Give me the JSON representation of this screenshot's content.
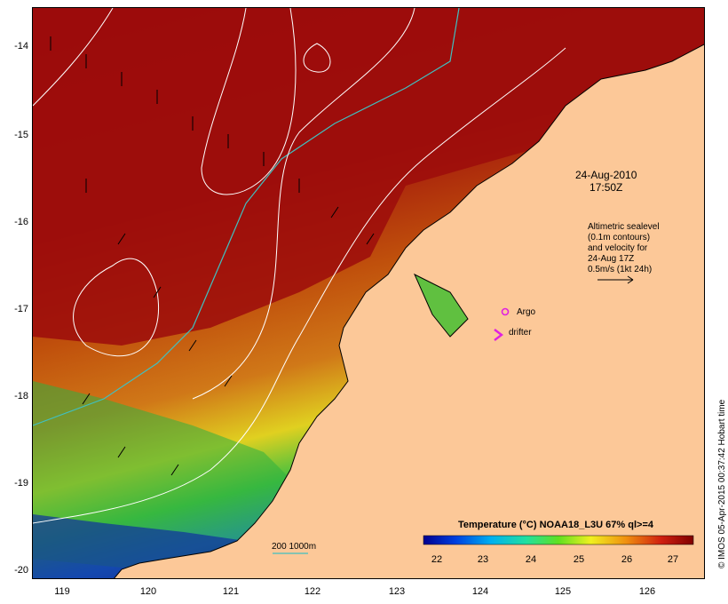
{
  "map": {
    "timestamp_line1": "24-Aug-2010",
    "timestamp_line2": "17:50Z",
    "altimetry_note": [
      "Altimetric sealevel",
      "(0.1m contours)",
      "and velocity for",
      "24-Aug 17Z",
      "0.5m/s (1kt 24h)"
    ],
    "argo_label": "Argo",
    "drifter_label": "drifter",
    "scale_label": "200  1000m",
    "legend_title": "Temperature (°C) NOAA18_L3U 67% ql>=4",
    "colorbar_ticks": [
      "22",
      "23",
      "24",
      "25",
      "26",
      "27"
    ],
    "lat_ticks": [
      "-14",
      "-15",
      "-16",
      "-17",
      "-18",
      "-19",
      "-20"
    ],
    "lon_ticks": [
      "119",
      "120",
      "121",
      "122",
      "123",
      "124",
      "125",
      "126"
    ],
    "credit": "© IMOS 05-Apr-2015 00:37:42 Hobart time",
    "colors": {
      "land": "#fcc898",
      "warm": "#a01010",
      "contour": "#ffffff",
      "isobath": "#40c0c0",
      "marker": "#e020e0"
    }
  }
}
